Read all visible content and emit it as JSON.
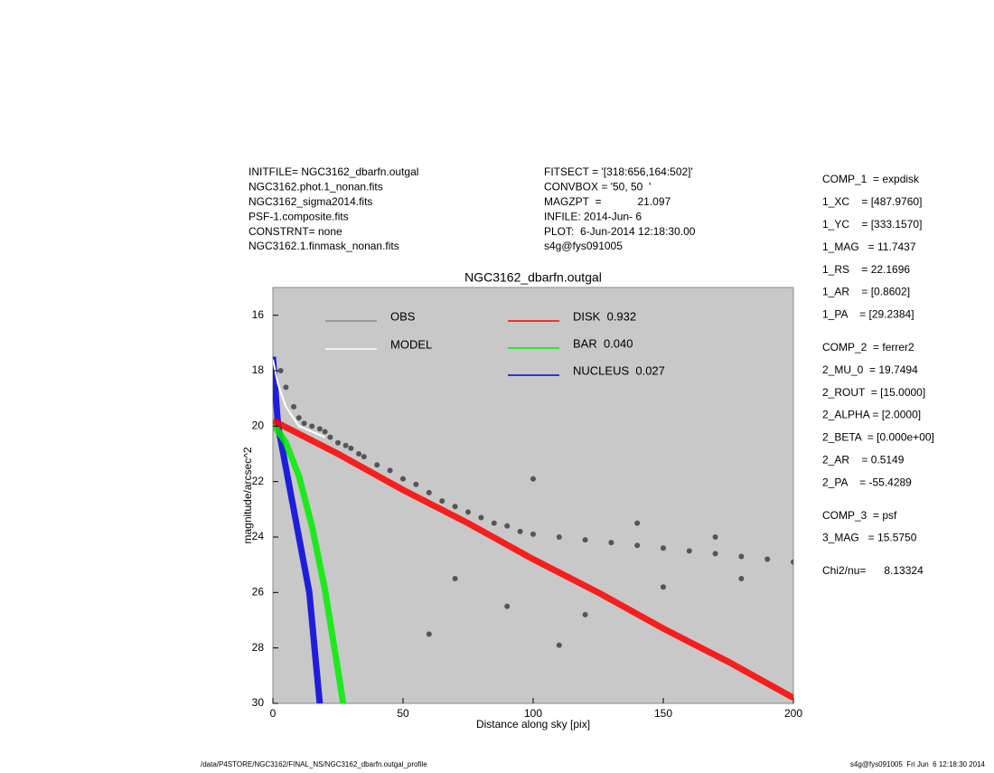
{
  "header": {
    "left": [
      "INITFILE= NGC3162_dbarfn.outgal",
      "NGC3162.phot.1_nonan.fits",
      "NGC3162_sigma2014.fits",
      "PSF-1.composite.fits",
      "CONSTRNT= none",
      "NGC3162.1.finmask_nonan.fits"
    ],
    "middle": [
      "FITSECT = '[318:656,164:502]'",
      "CONVBOX = '50, 50  '",
      "MAGZPT  =            21.097",
      "INFILE: 2014-Jun- 6",
      "PLOT:  6-Jun-2014 12:18:30.00",
      "s4g@fys091005"
    ]
  },
  "params": [
    [
      "COMP_1  = expdisk",
      "1_XC    = [487.9760]",
      "1_YC    = [333.1570]",
      "1_MAG   = 11.7437",
      "1_RS    = 22.1696",
      "1_AR    = [0.8602]",
      "1_PA    = [29.2384]"
    ],
    [
      "COMP_2  = ferrer2",
      "2_MU_0  = 19.7494",
      "2_ROUT  = [15.0000]",
      "2_ALPHA = [2.0000]",
      "2_BETA  = [0.000e+00]",
      "2_AR    = 0.5149",
      "2_PA    = -55.4289"
    ],
    [
      "COMP_3  = psf",
      "3_MAG   = 15.5750"
    ],
    [
      "Chi2/nu=      8.13324"
    ]
  ],
  "footer": {
    "left": "/data/P4STORE/NGC3162/FINAL_NS/NGC3162_dbarfn.outgal_profile",
    "right": "s4g@fys091005  Fri Jun  6 12:18:30 2014"
  },
  "chart_data": {
    "type": "scatter",
    "title": "NGC3162_dbarfn.outgal",
    "x_label": "Distance along sky [pix]",
    "y_label": "magnitude/arcsec^2",
    "xlim": [
      0,
      200
    ],
    "xticks": [
      0,
      50,
      100,
      150,
      200
    ],
    "ylim": [
      30,
      15
    ],
    "yticks": [
      16,
      18,
      20,
      22,
      24,
      26,
      28,
      30
    ],
    "background": "#c8c8c8",
    "series": [
      {
        "name": "OBS",
        "color": "#555555",
        "legend_color": "#888888",
        "marker": "points",
        "x": [
          3,
          5,
          8,
          10,
          12,
          15,
          18,
          20,
          22,
          25,
          28,
          30,
          33,
          35,
          40,
          45,
          50,
          55,
          60,
          65,
          70,
          75,
          80,
          85,
          90,
          95,
          100,
          110,
          120,
          130,
          140,
          150,
          160,
          170,
          180,
          190,
          200,
          70,
          90,
          120,
          150,
          180,
          100,
          140,
          170,
          60,
          110
        ],
        "values": [
          18.0,
          18.6,
          19.3,
          19.7,
          19.9,
          20.0,
          20.1,
          20.2,
          20.4,
          20.6,
          20.7,
          20.8,
          21.0,
          21.1,
          21.4,
          21.6,
          21.9,
          22.1,
          22.4,
          22.7,
          22.9,
          23.1,
          23.3,
          23.5,
          23.6,
          23.8,
          23.9,
          24.0,
          24.1,
          24.2,
          24.3,
          24.4,
          24.5,
          24.6,
          24.7,
          24.8,
          24.9,
          25.5,
          26.5,
          26.8,
          25.8,
          25.5,
          21.9,
          23.5,
          24.0,
          27.5,
          27.9
        ]
      },
      {
        "name": "MODEL",
        "color": "#ffffff",
        "legend_color": "#ffffff",
        "marker": "line",
        "x": [
          0,
          2,
          5,
          10,
          15,
          20
        ],
        "values": [
          17.6,
          18.5,
          19.3,
          20.0,
          20.2,
          20.4
        ]
      },
      {
        "name": "DISK  0.932",
        "color": "#ff0000",
        "legend_color": "#ff0000",
        "marker": "band",
        "x": [
          0,
          25,
          50,
          75,
          100,
          125,
          150,
          175,
          200
        ],
        "values": [
          19.8,
          21.0,
          22.3,
          23.5,
          24.8,
          26.0,
          27.3,
          28.5,
          29.8
        ]
      },
      {
        "name": "BAR  0.040",
        "color": "#00ee00",
        "legend_color": "#00ee00",
        "marker": "band",
        "x": [
          0,
          5,
          10,
          15,
          20,
          25,
          27
        ],
        "values": [
          19.9,
          20.6,
          21.8,
          23.6,
          25.9,
          28.8,
          30
        ]
      },
      {
        "name": "NUCLEUS  0.027",
        "color": "#0000dd",
        "legend_color": "#0000dd",
        "marker": "band",
        "x": [
          0,
          2,
          6,
          10,
          14,
          18
        ],
        "values": [
          17.5,
          20,
          22,
          24,
          26,
          30
        ]
      }
    ]
  }
}
